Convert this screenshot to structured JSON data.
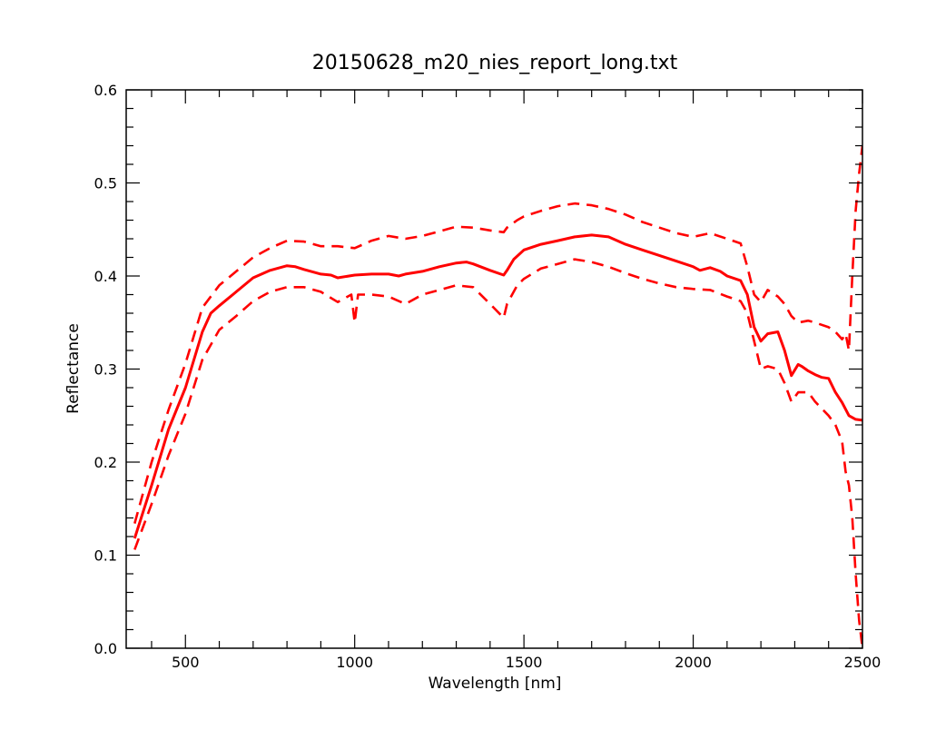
{
  "chart_data": {
    "type": "line",
    "title": "20150628_m20_nies_report_long.txt",
    "xlabel": "Wavelength [nm]",
    "ylabel": "Reflectance",
    "xlim": [
      325,
      2500
    ],
    "ylim": [
      0.0,
      0.6
    ],
    "x_ticks": [
      500,
      1000,
      1500,
      2000,
      2500
    ],
    "x_tick_labels": [
      "500",
      "1000",
      "1500",
      "2000",
      "2500"
    ],
    "y_ticks": [
      0.0,
      0.1,
      0.2,
      0.3,
      0.4,
      0.5,
      0.6
    ],
    "y_tick_labels": [
      "0.0",
      "0.1",
      "0.2",
      "0.3",
      "0.4",
      "0.5",
      "0.6"
    ],
    "grid": false,
    "legend": "none",
    "color": "#ff0000",
    "series": [
      {
        "style": "solid",
        "x": [
          350,
          400,
          450,
          500,
          550,
          575,
          600,
          650,
          700,
          750,
          800,
          825,
          850,
          900,
          930,
          950,
          1000,
          1050,
          1100,
          1130,
          1150,
          1200,
          1250,
          1300,
          1330,
          1350,
          1400,
          1440,
          1450,
          1470,
          1500,
          1550,
          1600,
          1650,
          1700,
          1750,
          1800,
          1850,
          1900,
          1950,
          2000,
          2020,
          2050,
          2080,
          2100,
          2140,
          2160,
          2180,
          2200,
          2220,
          2250,
          2270,
          2290,
          2310,
          2320,
          2340,
          2360,
          2380,
          2400,
          2420,
          2440,
          2460,
          2480,
          2500
        ],
        "y": [
          0.118,
          0.175,
          0.235,
          0.28,
          0.34,
          0.36,
          0.368,
          0.383,
          0.398,
          0.406,
          0.411,
          0.41,
          0.407,
          0.402,
          0.401,
          0.398,
          0.401,
          0.402,
          0.402,
          0.4,
          0.402,
          0.405,
          0.41,
          0.414,
          0.415,
          0.413,
          0.406,
          0.401,
          0.406,
          0.418,
          0.428,
          0.434,
          0.438,
          0.442,
          0.444,
          0.442,
          0.434,
          0.428,
          0.422,
          0.416,
          0.41,
          0.406,
          0.409,
          0.405,
          0.4,
          0.395,
          0.38,
          0.345,
          0.33,
          0.338,
          0.34,
          0.32,
          0.293,
          0.305,
          0.303,
          0.298,
          0.294,
          0.291,
          0.29,
          0.275,
          0.264,
          0.25,
          0.246,
          0.245
        ]
      },
      {
        "style": "dashed",
        "x": [
          350,
          400,
          450,
          500,
          550,
          600,
          650,
          700,
          750,
          800,
          850,
          900,
          950,
          1000,
          1050,
          1100,
          1150,
          1200,
          1250,
          1300,
          1350,
          1400,
          1440,
          1450,
          1480,
          1500,
          1550,
          1600,
          1650,
          1700,
          1750,
          1800,
          1850,
          1900,
          1950,
          2000,
          2050,
          2100,
          2140,
          2160,
          2180,
          2200,
          2220,
          2250,
          2270,
          2290,
          2310,
          2340,
          2360,
          2400,
          2420,
          2440,
          2450,
          2460,
          2470,
          2480,
          2490,
          2500
        ],
        "y": [
          0.134,
          0.2,
          0.256,
          0.306,
          0.366,
          0.39,
          0.405,
          0.42,
          0.43,
          0.438,
          0.437,
          0.432,
          0.432,
          0.43,
          0.438,
          0.443,
          0.44,
          0.443,
          0.448,
          0.453,
          0.452,
          0.449,
          0.447,
          0.452,
          0.46,
          0.464,
          0.47,
          0.475,
          0.478,
          0.476,
          0.472,
          0.466,
          0.458,
          0.452,
          0.446,
          0.442,
          0.446,
          0.44,
          0.435,
          0.41,
          0.38,
          0.372,
          0.385,
          0.378,
          0.37,
          0.357,
          0.35,
          0.352,
          0.35,
          0.345,
          0.34,
          0.332,
          0.338,
          0.32,
          0.4,
          0.47,
          0.51,
          0.54
        ]
      },
      {
        "style": "dashed",
        "x": [
          350,
          400,
          450,
          500,
          550,
          600,
          650,
          700,
          750,
          800,
          850,
          900,
          950,
          990,
          1000,
          1010,
          1050,
          1100,
          1150,
          1200,
          1250,
          1300,
          1350,
          1400,
          1440,
          1450,
          1480,
          1500,
          1550,
          1600,
          1650,
          1700,
          1750,
          1800,
          1850,
          1900,
          1950,
          2000,
          2050,
          2100,
          2140,
          2160,
          2180,
          2200,
          2220,
          2250,
          2270,
          2290,
          2310,
          2340,
          2360,
          2400,
          2420,
          2440,
          2450,
          2460,
          2470,
          2480,
          2490,
          2500
        ],
        "y": [
          0.106,
          0.155,
          0.207,
          0.252,
          0.31,
          0.342,
          0.357,
          0.373,
          0.383,
          0.388,
          0.388,
          0.383,
          0.372,
          0.38,
          0.35,
          0.38,
          0.38,
          0.378,
          0.37,
          0.38,
          0.385,
          0.39,
          0.388,
          0.37,
          0.355,
          0.37,
          0.39,
          0.397,
          0.408,
          0.413,
          0.418,
          0.415,
          0.41,
          0.403,
          0.397,
          0.392,
          0.388,
          0.386,
          0.385,
          0.378,
          0.373,
          0.36,
          0.33,
          0.3,
          0.303,
          0.3,
          0.285,
          0.265,
          0.275,
          0.275,
          0.265,
          0.25,
          0.24,
          0.222,
          0.19,
          0.175,
          0.14,
          0.08,
          0.03,
          0.0
        ]
      }
    ]
  }
}
